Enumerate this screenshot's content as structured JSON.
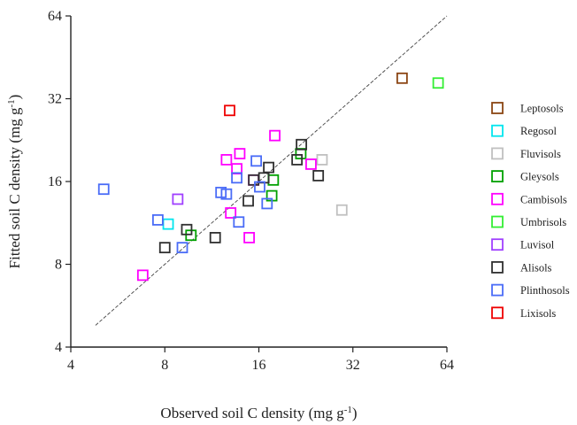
{
  "chart_data": {
    "type": "scatter",
    "title": "",
    "xlabel": "Observed soil C density (mg g",
    "xlabel_sup": "-1",
    "xlabel_tail": ")",
    "ylabel": "Fitted soil C density (mg g",
    "ylabel_sup": "-1",
    "ylabel_tail": ")",
    "x_scale": "log2",
    "y_scale": "log2",
    "xlim": [
      4,
      64
    ],
    "ylim": [
      4,
      64
    ],
    "x_ticks": [
      4,
      8,
      16,
      32,
      64
    ],
    "y_ticks": [
      4,
      8,
      16,
      32,
      64
    ],
    "x_tick_labels": [
      "4",
      "8",
      "16",
      "32",
      "64"
    ],
    "y_tick_labels": [
      "4",
      "8",
      "16",
      "32",
      "64"
    ],
    "reference_line": "1:1",
    "reference_line_style": "dashed",
    "grid": false,
    "legend_position": "right",
    "series": [
      {
        "name": "Leptosols",
        "color": "#8B4513",
        "points": [
          [
            46,
            38
          ]
        ]
      },
      {
        "name": "Regosol",
        "color": "#00E5EE",
        "points": [
          [
            8.2,
            11.2
          ]
        ]
      },
      {
        "name": "Fluvisols",
        "color": "#C0C0C0",
        "points": [
          [
            25.5,
            19.2
          ],
          [
            29.5,
            12.6
          ]
        ]
      },
      {
        "name": "Gleysols",
        "color": "#00A000",
        "points": [
          [
            9.7,
            10.2
          ],
          [
            17.6,
            14.2
          ],
          [
            17.8,
            16.2
          ],
          [
            21.8,
            20.2
          ]
        ]
      },
      {
        "name": "Cambisols",
        "color": "#FF00FF",
        "points": [
          [
            6.8,
            7.3
          ],
          [
            12.6,
            19.2
          ],
          [
            13.0,
            12.3
          ],
          [
            13.6,
            17.8
          ],
          [
            13.9,
            20.2
          ],
          [
            14.9,
            10.0
          ],
          [
            15.4,
            16.2
          ],
          [
            18.0,
            23.5
          ],
          [
            23.5,
            18.5
          ]
        ]
      },
      {
        "name": "Umbrisols",
        "color": "#33EE33",
        "points": [
          [
            60,
            36.5
          ]
        ]
      },
      {
        "name": "Luvisol",
        "color": "#A040FF",
        "points": [
          [
            8.8,
            13.8
          ]
        ]
      },
      {
        "name": "Alisols",
        "color": "#303030",
        "points": [
          [
            8.0,
            9.2
          ],
          [
            9.4,
            10.7
          ],
          [
            11.6,
            10.0
          ],
          [
            14.8,
            13.6
          ],
          [
            15.4,
            16.2
          ],
          [
            16.6,
            16.5
          ],
          [
            17.2,
            18.0
          ],
          [
            21.2,
            19.2
          ],
          [
            21.9,
            21.8
          ],
          [
            24.8,
            16.8
          ]
        ]
      },
      {
        "name": "Plinthosols",
        "color": "#4A6CF7",
        "points": [
          [
            5.1,
            15.0
          ],
          [
            7.6,
            11.6
          ],
          [
            9.1,
            9.2
          ],
          [
            12.1,
            14.6
          ],
          [
            12.6,
            14.4
          ],
          [
            13.6,
            16.5
          ],
          [
            13.8,
            11.4
          ],
          [
            15.7,
            19.0
          ],
          [
            16.1,
            15.3
          ],
          [
            17.0,
            13.3
          ]
        ]
      },
      {
        "name": "Lixisols",
        "color": "#EE0000",
        "points": [
          [
            12.9,
            29.0
          ]
        ]
      }
    ]
  }
}
